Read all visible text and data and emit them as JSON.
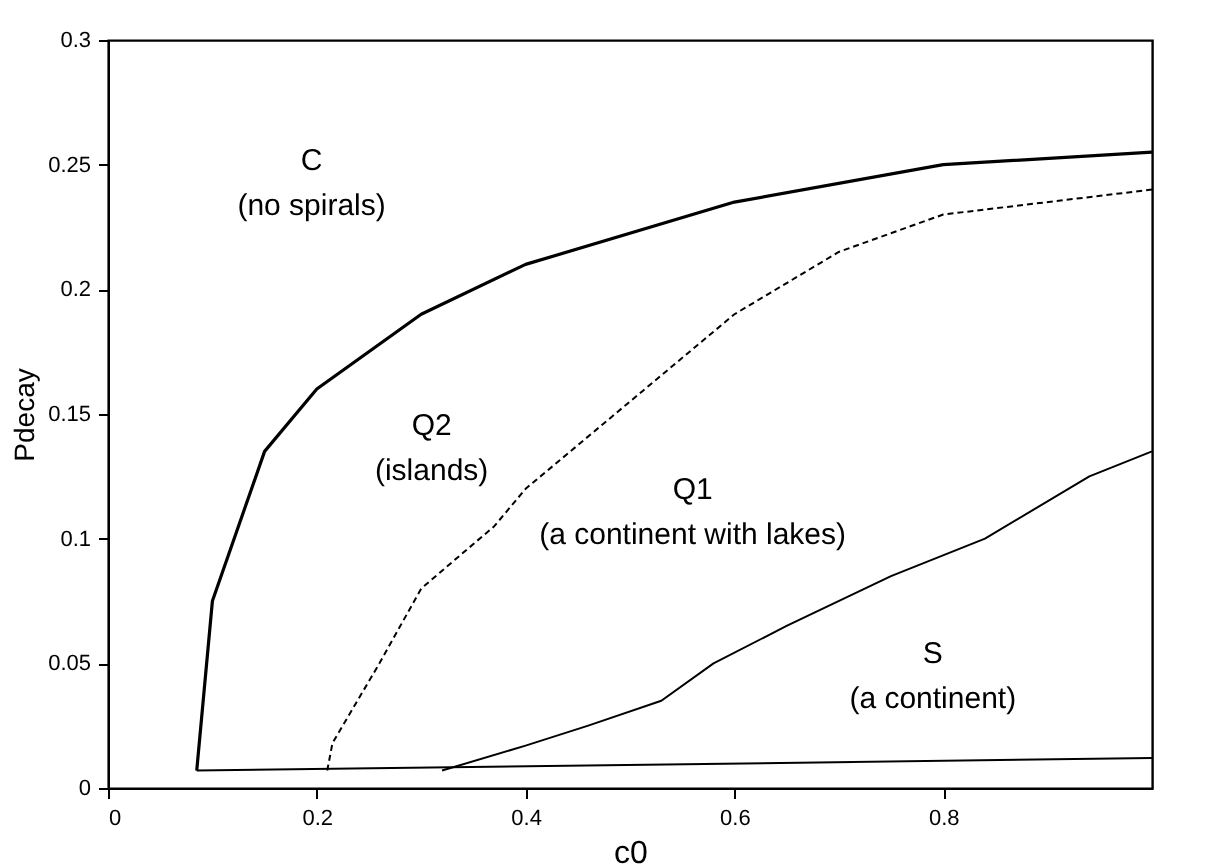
{
  "chart_data": {
    "type": "line",
    "xlabel": "c0",
    "ylabel": "Pdecay",
    "xlim": [
      0,
      1
    ],
    "ylim": [
      0,
      0.3
    ],
    "xticks": [
      0,
      0.2,
      0.4,
      0.6,
      0.8
    ],
    "yticks": [
      0,
      0.05,
      0.1,
      0.15,
      0.2,
      0.25,
      0.3
    ],
    "grid": false,
    "marker": "none",
    "series": [
      {
        "color": "#000000",
        "line_style": "solid",
        "x": [
          0.085,
          0.1,
          0.15,
          0.2,
          0.3,
          0.4,
          0.6,
          0.8,
          1.0
        ],
        "values": [
          0.007,
          0.075,
          0.135,
          0.16,
          0.19,
          0.21,
          0.235,
          0.25,
          0.255
        ]
      },
      {
        "color": "#000000",
        "line_style": "dashed",
        "x": [
          0.21,
          0.215,
          0.26,
          0.3,
          0.37,
          0.4,
          0.5,
          0.6,
          0.7,
          0.8,
          1.0
        ],
        "values": [
          0.007,
          0.018,
          0.05,
          0.08,
          0.105,
          0.12,
          0.155,
          0.19,
          0.215,
          0.23,
          0.24
        ]
      },
      {
        "color": "#000000",
        "line_style": "solid",
        "x": [
          0.32,
          0.4,
          0.46,
          0.53,
          0.58,
          0.65,
          0.75,
          0.84,
          0.94,
          1.0
        ],
        "values": [
          0.007,
          0.017,
          0.025,
          0.035,
          0.05,
          0.065,
          0.085,
          0.1,
          0.125,
          0.135
        ]
      },
      {
        "color": "#000000",
        "line_style": "solid",
        "x": [
          0.085,
          1.0
        ],
        "values": [
          0.007,
          0.012
        ]
      }
    ],
    "annotations": [
      "C",
      "(no spirals)",
      "Q2",
      "(islands)",
      "Q1",
      "(a continent with lakes)",
      "S",
      "(a continent)"
    ]
  }
}
